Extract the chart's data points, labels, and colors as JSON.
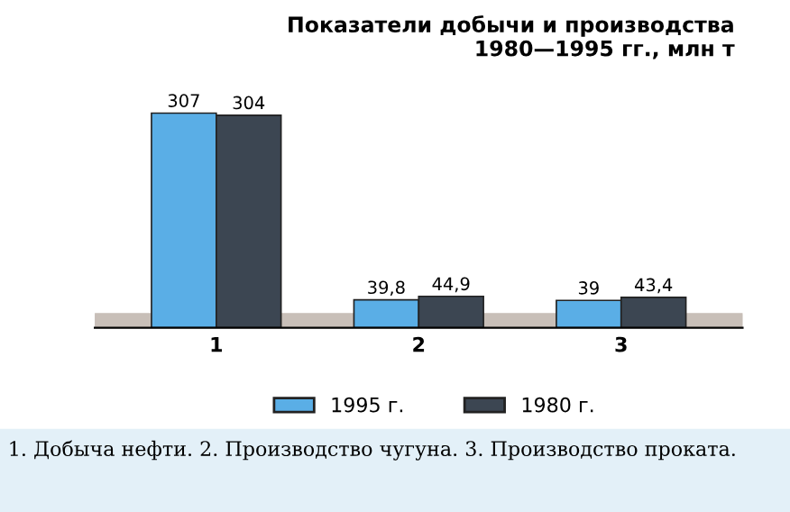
{
  "chart_data": {
    "type": "bar",
    "title": "Показатели добычи и производства\n1980—1995 гг., млн т",
    "categories": [
      "1",
      "2",
      "3"
    ],
    "series": [
      {
        "name": "1995 г.",
        "color": "#5aaee6",
        "values": [
          307,
          39.8,
          39
        ],
        "value_labels": [
          "307",
          "39,8",
          "39"
        ]
      },
      {
        "name": "1980 г.",
        "color": "#3c4652",
        "values": [
          304,
          44.9,
          43.4
        ],
        "value_labels": [
          "304",
          "44,9",
          "43,4"
        ]
      }
    ],
    "legend": "bottom",
    "tick_labels": "x",
    "grid": false,
    "annotations": [
      "1. Добыча нефти. 2. Производство чугуна. 3. Производство проката."
    ]
  }
}
